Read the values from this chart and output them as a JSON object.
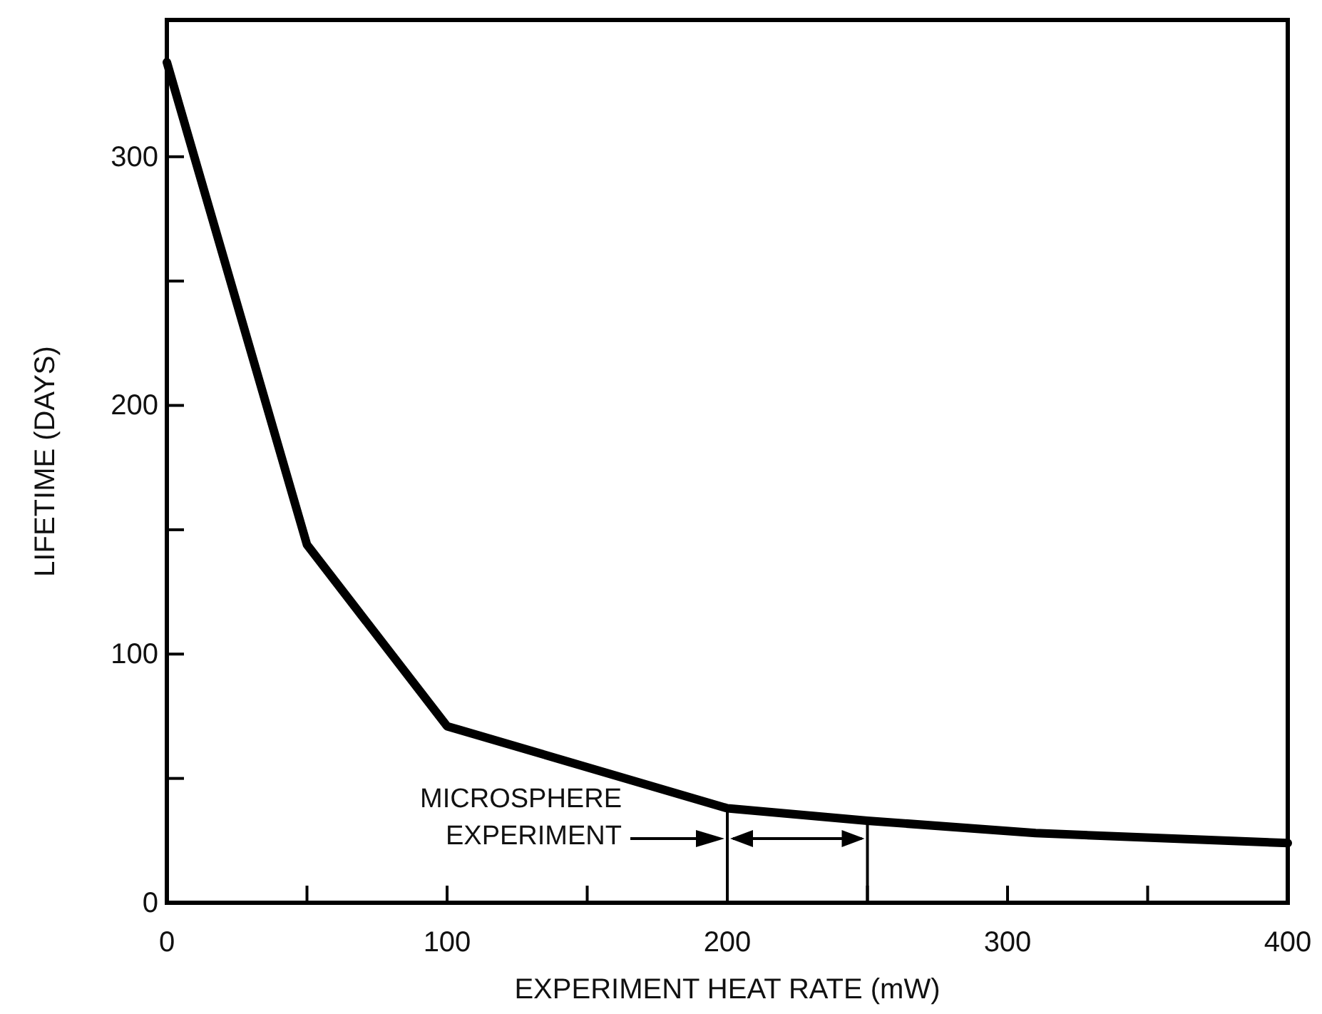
{
  "chart_data": {
    "type": "line",
    "xlabel": "EXPERIMENT HEAT RATE (mW)",
    "ylabel": "LIFETIME (DAYS)",
    "x": [
      0,
      50,
      100,
      200,
      250,
      310,
      400
    ],
    "series": [
      {
        "color": "#000000",
        "values": [
          338,
          144,
          71,
          38,
          33,
          28,
          24
        ]
      }
    ],
    "xlim": [
      0,
      400
    ],
    "ylim": [
      0,
      355
    ],
    "xticks": [
      0,
      {
        "value": 50,
        "label": null
      },
      100,
      {
        "value": 150,
        "label": null
      },
      200,
      {
        "value": 250,
        "label": null
      },
      300,
      {
        "value": 350,
        "label": null
      },
      400
    ],
    "yticks": [
      0,
      {
        "value": 50,
        "label": null
      },
      100,
      {
        "value": 150,
        "label": null
      },
      200,
      {
        "value": 250,
        "label": null
      },
      300
    ],
    "ref_lines": [
      {
        "axis": "x",
        "value": 200
      },
      {
        "axis": "x",
        "value": 250
      }
    ],
    "annotations": [
      "MICROSPHERE EXPERIMENT"
    ],
    "grid": false,
    "marker": "none",
    "line_style": "solid"
  }
}
